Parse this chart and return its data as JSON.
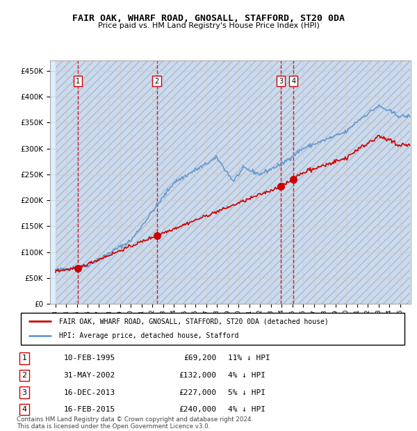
{
  "title": "FAIR OAK, WHARF ROAD, GNOSALL, STAFFORD, ST20 0DA",
  "subtitle": "Price paid vs. HM Land Registry's House Price Index (HPI)",
  "purchases": [
    {
      "num": 1,
      "date_str": "10-FEB-1995",
      "date_x": 1995.11,
      "price": 69200,
      "pct": "11% ↓ HPI"
    },
    {
      "num": 2,
      "date_str": "31-MAY-2002",
      "date_x": 2002.41,
      "price": 132000,
      "pct": "4% ↓ HPI"
    },
    {
      "num": 3,
      "date_str": "16-DEC-2013",
      "date_x": 2013.96,
      "price": 227000,
      "pct": "5% ↓ HPI"
    },
    {
      "num": 4,
      "date_str": "16-FEB-2015",
      "date_x": 2015.12,
      "price": 240000,
      "pct": "4% ↓ HPI"
    }
  ],
  "legend_label_red": "FAIR OAK, WHARF ROAD, GNOSALL, STAFFORD, ST20 0DA (detached house)",
  "legend_label_blue": "HPI: Average price, detached house, Stafford",
  "footer": "Contains HM Land Registry data © Crown copyright and database right 2024.\nThis data is licensed under the Open Government Licence v3.0.",
  "ylim": [
    0,
    470000
  ],
  "xlim": [
    1992.5,
    2026.0
  ],
  "hpi_color": "#6699cc",
  "price_color": "#cc0000",
  "background_color": "#ddeeff",
  "vline_color": "#cc0000"
}
